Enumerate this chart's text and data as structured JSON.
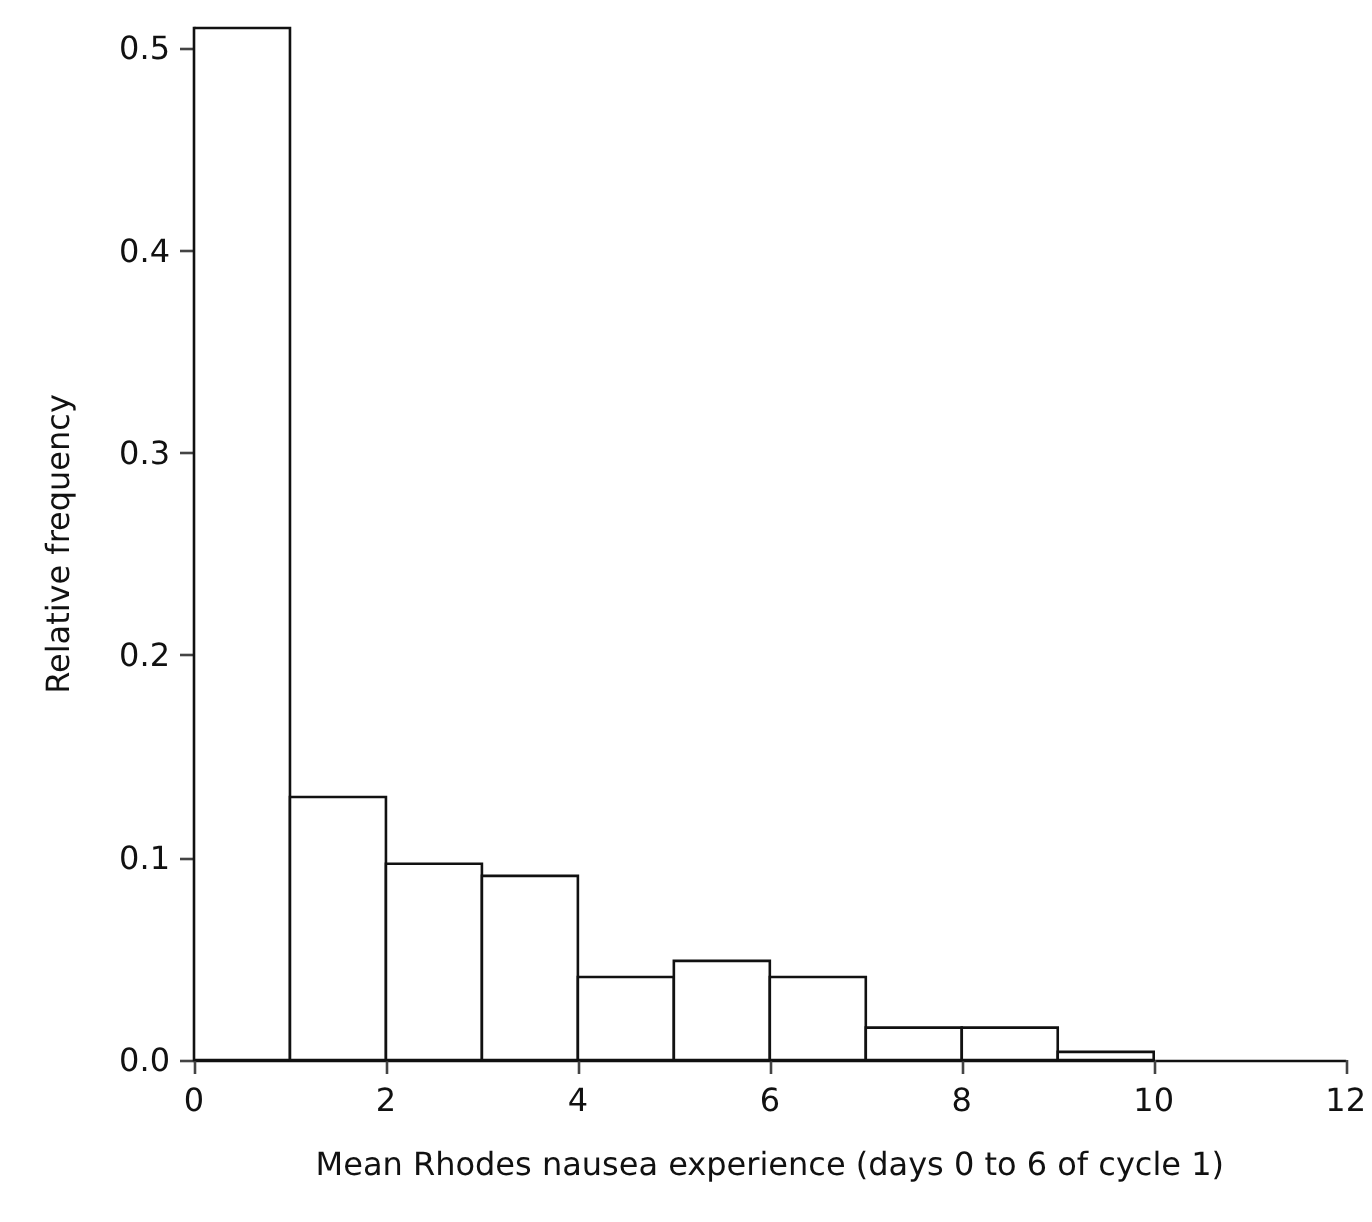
{
  "chart_data": {
    "type": "histogram",
    "xlabel": "Mean Rhodes nausea experience (days 0 to 6 of cycle 1)",
    "ylabel": "Relative frequency",
    "bins": [
      0,
      1,
      2,
      3,
      4,
      5,
      6,
      7,
      8,
      9,
      10
    ],
    "values": [
      0.51,
      0.13,
      0.097,
      0.091,
      0.041,
      0.049,
      0.041,
      0.016,
      0.016,
      0.004
    ],
    "color": "#ffffff",
    "xlim": [
      0,
      12
    ],
    "xticks": [
      0,
      2,
      4,
      6,
      8,
      10,
      12
    ],
    "ylim": [
      0,
      0.51
    ],
    "yticks": [
      {
        "value": 0,
        "label": "0.0"
      },
      0.1,
      0.2,
      0.3,
      0.4,
      0.5
    ],
    "grid": false
  }
}
